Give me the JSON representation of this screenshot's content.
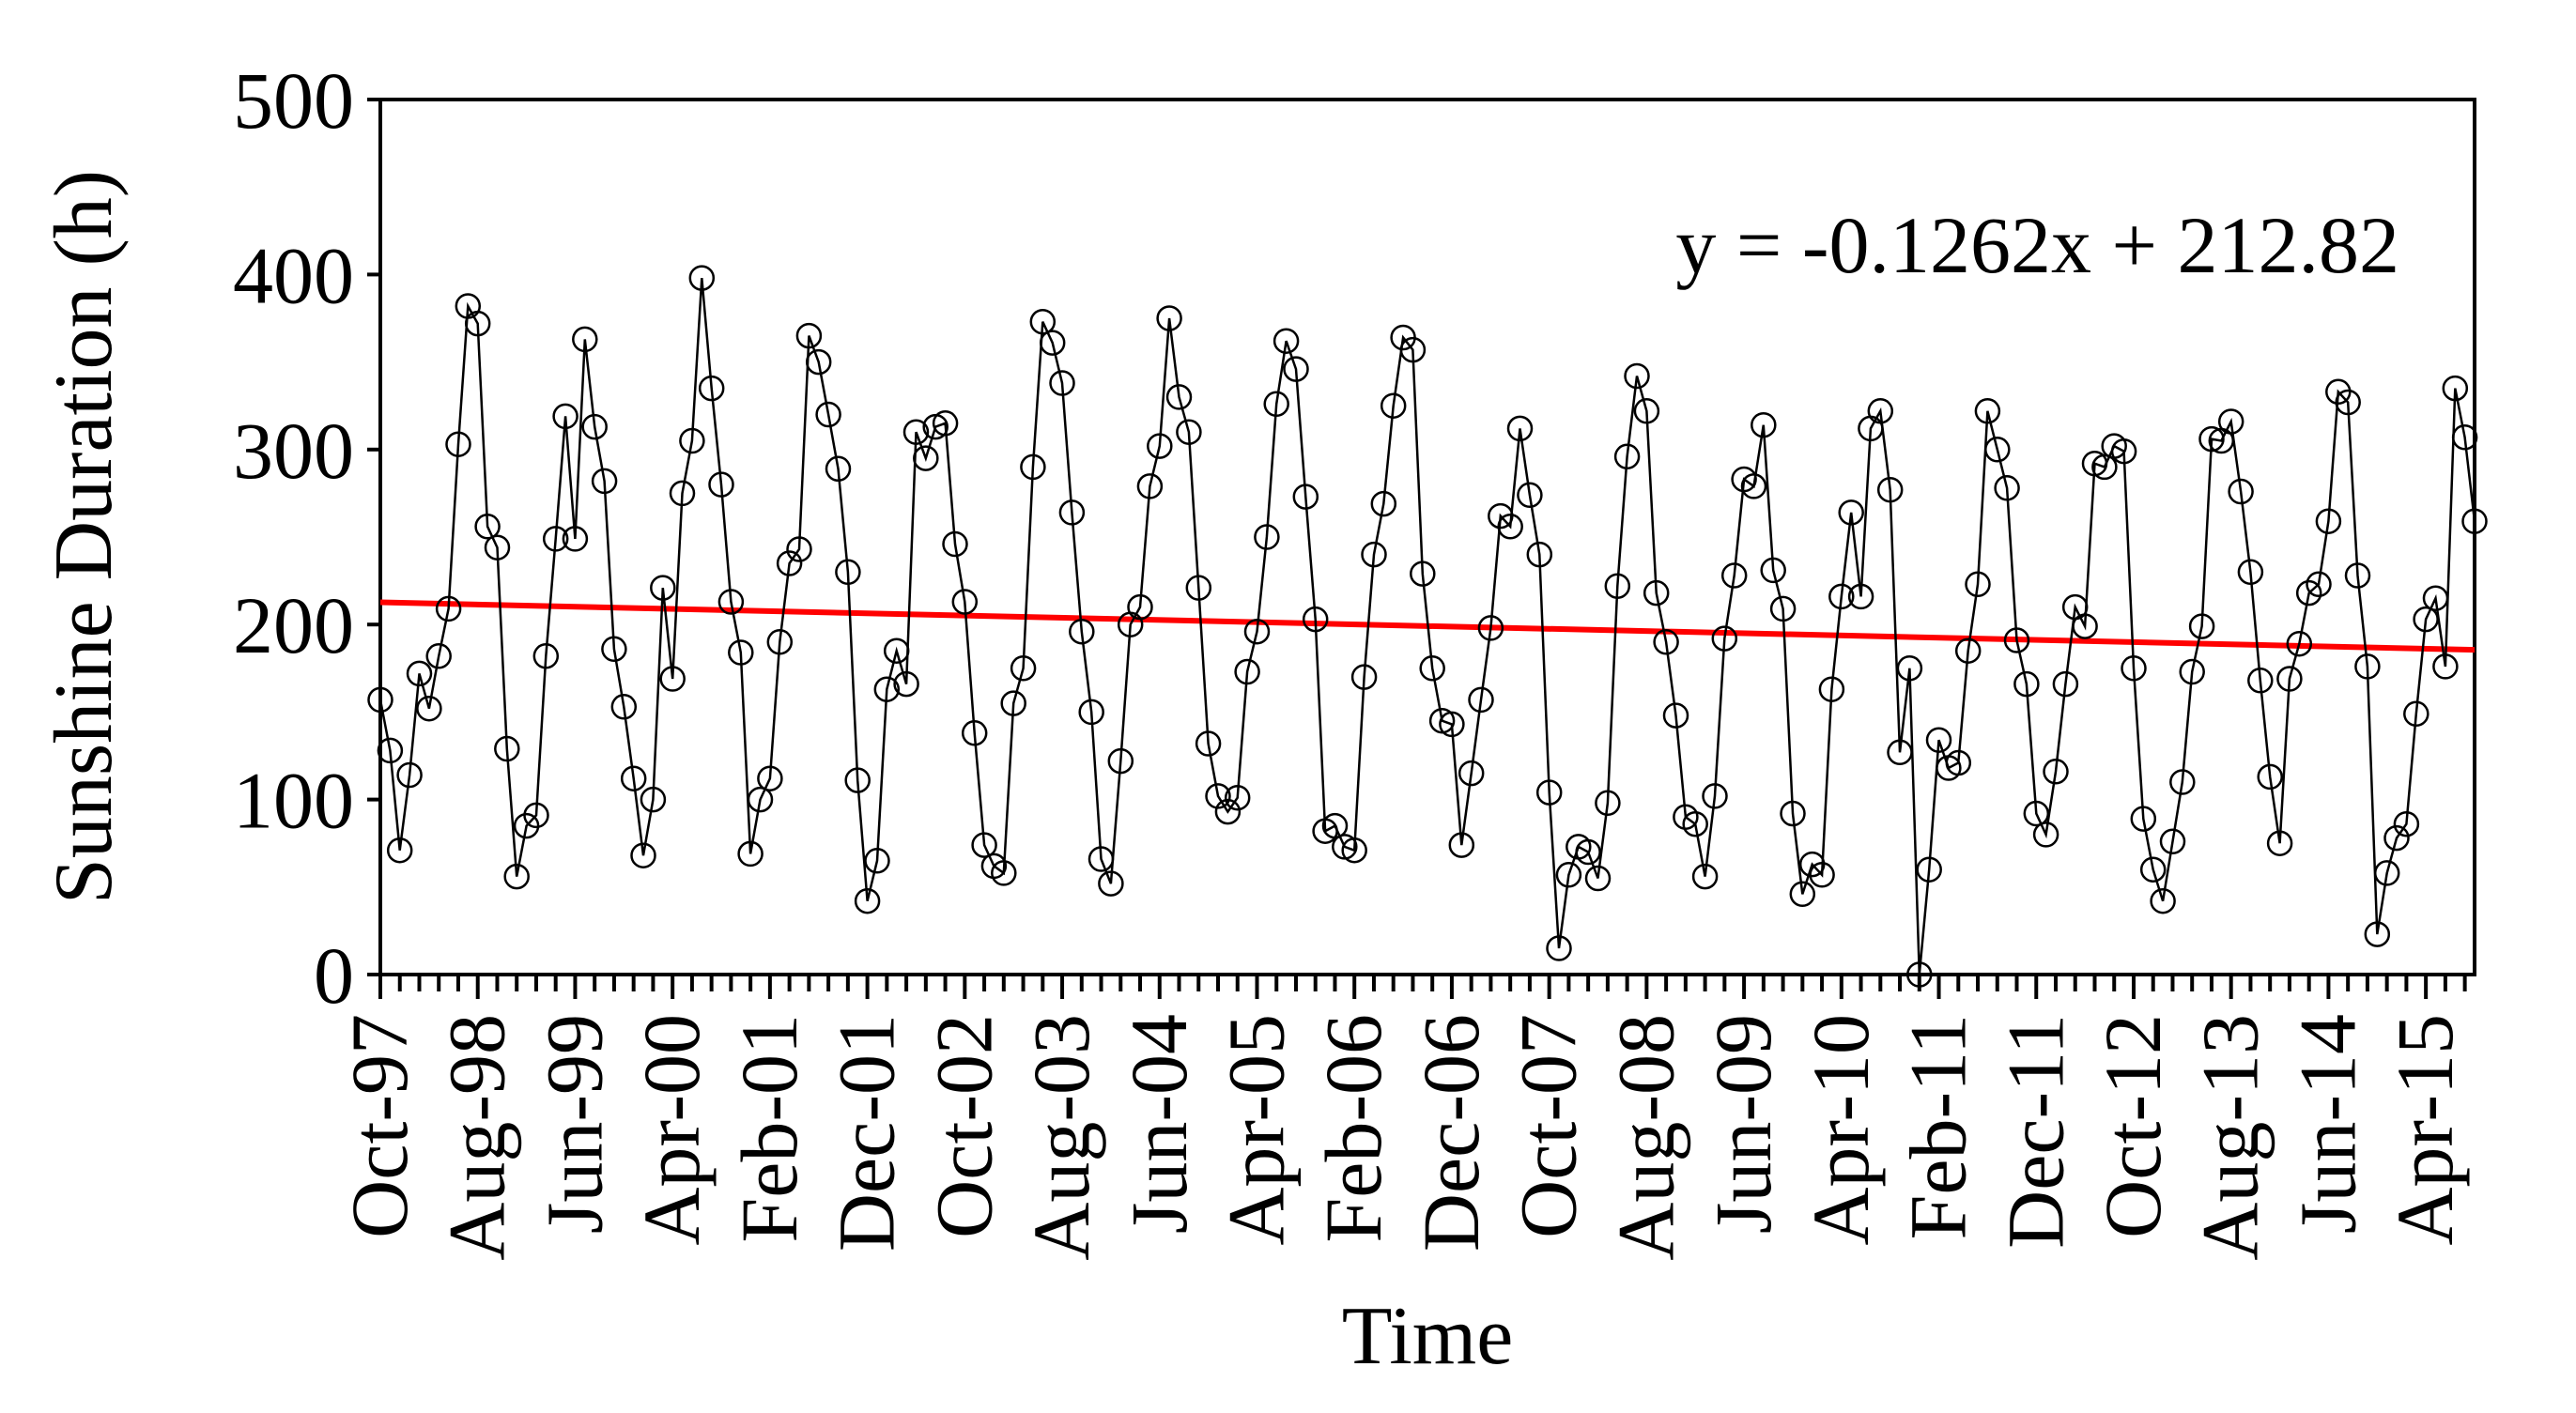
{
  "chart_data": {
    "type": "line",
    "title": "",
    "xlabel": "Time",
    "ylabel": "Sunshine Duration (h)",
    "ylim": [
      0,
      500
    ],
    "yticks": [
      0,
      100,
      200,
      300,
      400,
      500
    ],
    "x_tick_labels": [
      "Oct-97",
      "Aug-98",
      "Jun-99",
      "Apr-00",
      "Feb-01",
      "Dec-01",
      "Oct-02",
      "Aug-03",
      "Jun-04",
      "Apr-05",
      "Feb-06",
      "Dec-06",
      "Oct-07",
      "Aug-08",
      "Jun-09",
      "Apr-10",
      "Feb-11",
      "Dec-11",
      "Oct-12",
      "Aug-13",
      "Jun-14",
      "Apr-15"
    ],
    "x_tick_interval_months": 10,
    "x_minor_tick_interval_months": 2,
    "grid": false,
    "legend": "none",
    "marker": "open circle",
    "series": [
      {
        "values": [
          157,
          128,
          71,
          114,
          172,
          152,
          182,
          209,
          303,
          382,
          372,
          256,
          244,
          129,
          56,
          85,
          91,
          182,
          249,
          319,
          249,
          363,
          313,
          282,
          186,
          153,
          112,
          68,
          100,
          221,
          169,
          275,
          305,
          398,
          335,
          280,
          213,
          184,
          69,
          100,
          112,
          190,
          235,
          243,
          365,
          350,
          320,
          289,
          230,
          111,
          42,
          65,
          163,
          185,
          166,
          310,
          295,
          313,
          315,
          246,
          213,
          138,
          74,
          62,
          58,
          155,
          175,
          290,
          373,
          361,
          338,
          264,
          196,
          150,
          66,
          52,
          122,
          200,
          210,
          279,
          302,
          375,
          330,
          310,
          221,
          132,
          102,
          93,
          101,
          173,
          196,
          250,
          326,
          362,
          346,
          273,
          203,
          82,
          85,
          73,
          71,
          170,
          240,
          269,
          325,
          364,
          357,
          229,
          175,
          145,
          143,
          74,
          115,
          157,
          198,
          262,
          256,
          312,
          274,
          240,
          104,
          15,
          57,
          73,
          70,
          55,
          98,
          222,
          296,
          342,
          322,
          218,
          190,
          148,
          90,
          86,
          56,
          102,
          192,
          228,
          283,
          279,
          314,
          231,
          209,
          92,
          46,
          63,
          57,
          163,
          216,
          264,
          216,
          312,
          322,
          277,
          127,
          175,
          0,
          60,
          134,
          118,
          121,
          185,
          223,
          322,
          300,
          278,
          191,
          166,
          92,
          80,
          116,
          166,
          210,
          199,
          292,
          290,
          302,
          299,
          175,
          89,
          60,
          42,
          76,
          110,
          173,
          199,
          306,
          305,
          316,
          276,
          230,
          168,
          113,
          75,
          169,
          189,
          218,
          223,
          259,
          333,
          327,
          228,
          176,
          23,
          58,
          78,
          86,
          149,
          203,
          215,
          176,
          335,
          307,
          259
        ]
      }
    ],
    "trendline": {
      "label": "y = -0.1262x + 212.82",
      "slope": -0.1262,
      "intercept": 212.82,
      "color": "#ff0000"
    },
    "colors": {
      "series": "#000000",
      "trendline": "#ff0000"
    }
  }
}
